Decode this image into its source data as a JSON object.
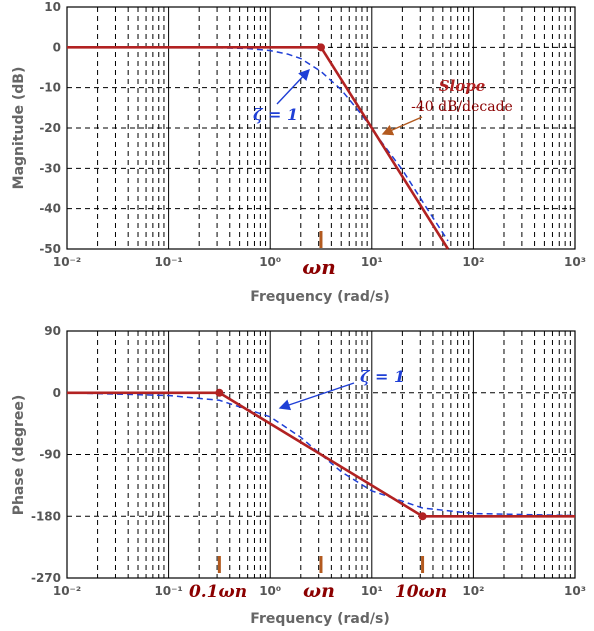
{
  "colors": {
    "asymptote": "#b22222",
    "exact": "#1f3fd6",
    "marker": "#b35a1f",
    "annotation_text": "#8b0000",
    "tick_text": "#555555",
    "axis_title": "#666666"
  },
  "chart_data": [
    {
      "type": "line",
      "xscale": "log",
      "xlim": [
        0.01,
        1000
      ],
      "ylim": [
        -50,
        10
      ],
      "grid": true,
      "xlabel": "Frequency  (rad/s)",
      "ylabel": "Magnitude  (dB)",
      "x_tick_labels": [
        "10⁻²",
        "10⁻¹",
        "10⁰",
        "10¹",
        "10²",
        "10³"
      ],
      "y_tick_labels": [
        "10",
        "0",
        "-10",
        "-20",
        "-30",
        "-40",
        "-50"
      ],
      "series": [
        {
          "role": "asymptote",
          "style": "solid",
          "x": [
            0.01,
            3.16,
            56.2
          ],
          "y": [
            0,
            0,
            -50
          ]
        },
        {
          "role": "exact",
          "style": "dashed",
          "x": [
            0.01,
            0.1,
            0.3,
            0.6,
            1.0,
            1.5,
            2.0,
            3.16,
            5.0,
            8.0,
            12.0,
            20.0,
            35.0,
            56.2
          ],
          "y": [
            0,
            -0.01,
            -0.08,
            -0.3,
            -0.8,
            -1.7,
            -2.8,
            -6.0,
            -10.5,
            -16.8,
            -22.9,
            -30.4,
            -40.0,
            -48.0
          ]
        }
      ],
      "markers": [
        {
          "x": 3.16,
          "y": 0
        }
      ],
      "annotations": {
        "zeta": "ζ = 1",
        "slope_title": "Slope",
        "slope_value": "-40 dB/decade",
        "omega_n": "ωn"
      }
    },
    {
      "type": "line",
      "xscale": "log",
      "xlim": [
        0.01,
        1000
      ],
      "ylim": [
        -270,
        90
      ],
      "grid": true,
      "xlabel": "Frequency  (rad/s)",
      "ylabel": "Phase (degree)",
      "x_tick_labels": [
        "10⁻²",
        "10⁻¹",
        "10⁰",
        "10¹",
        "10²",
        "10³"
      ],
      "y_tick_labels": [
        "90",
        "0",
        "-90",
        "-180",
        "-270"
      ],
      "series": [
        {
          "role": "asymptote",
          "style": "solid",
          "x": [
            0.01,
            0.316,
            31.6,
            1000
          ],
          "y": [
            0,
            0,
            -180,
            -180
          ]
        },
        {
          "role": "exact",
          "style": "dashed",
          "x": [
            0.01,
            0.1,
            0.316,
            1.0,
            2.0,
            3.16,
            5.0,
            10.0,
            31.6,
            100.0,
            1000.0
          ],
          "y": [
            0,
            -4,
            -11,
            -35,
            -65,
            -90,
            -115,
            -143,
            -168,
            -176,
            -179
          ]
        }
      ],
      "markers": [
        {
          "x": 0.316,
          "y": 0
        },
        {
          "x": 31.6,
          "y": -180
        }
      ],
      "annotations": {
        "zeta": "ζ = 1",
        "point_0_1": "0.1ωn",
        "omega_n": "ωn",
        "point_10": "10ωn"
      }
    }
  ]
}
